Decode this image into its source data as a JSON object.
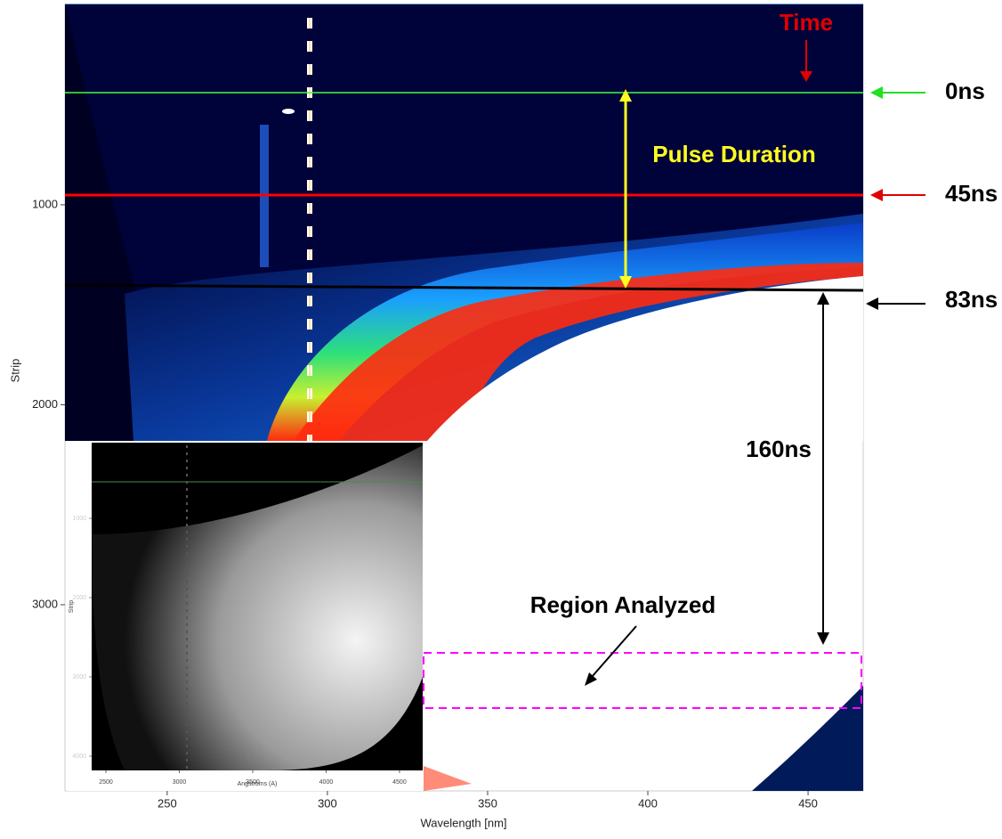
{
  "plot": {
    "x_axis": {
      "label": "Wavelength [nm]",
      "lim": [
        218.1,
        467.2
      ],
      "ticks": [
        250,
        300,
        350,
        400,
        450
      ]
    },
    "y_axis": {
      "label": "Strip",
      "lim": [
        -2,
        3931
      ],
      "ticks": [
        1000,
        2000,
        3000
      ]
    }
  },
  "annotations": {
    "time": "Time",
    "t0": "0ns",
    "t45": "45ns",
    "t83": "83ns",
    "pulse": "Pulse Duration",
    "t160": "160ns",
    "region": "Region Analyzed"
  },
  "inset": {
    "x_axis": {
      "label": "Angstroms (A)",
      "lim": [
        2403,
        4658
      ],
      "ticks": [
        2500,
        3000,
        3500,
        4000,
        4500
      ]
    },
    "y_axis": {
      "label": "Strip",
      "lim": [
        45,
        4180
      ],
      "ticks": [
        1000,
        2000,
        3000,
        4000
      ]
    }
  }
}
